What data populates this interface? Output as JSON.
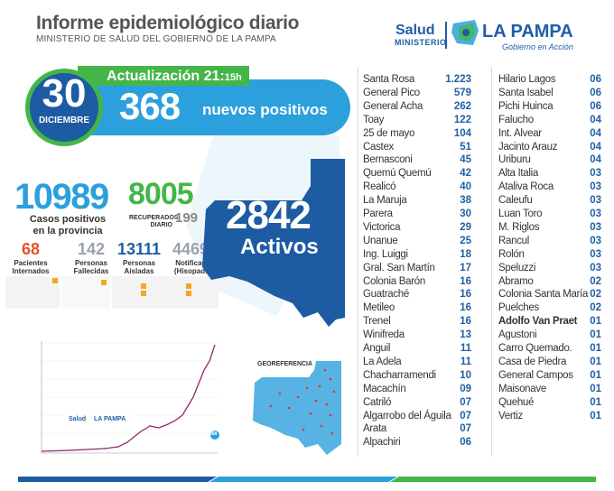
{
  "header": {
    "title": "Informe epidemiológico diario",
    "subtitle": "MINISTERIO DE SALUD DEL GOBIERNO DE LA PAMPA"
  },
  "brand": {
    "salud": "Salud",
    "ministerio": "MINISTERIO",
    "la_pampa": "LA PAMPA",
    "gobierno": "Gobierno en Acción"
  },
  "update": {
    "label": "Actualización 21:",
    "time": "15h"
  },
  "date": {
    "day": "30",
    "month": "DICIEMBRE"
  },
  "new_positive": {
    "value": "368",
    "label": "nuevos positivos"
  },
  "cases": {
    "value": "10989",
    "label_line1": "Casos positivos",
    "label_line2": "en la provincia"
  },
  "recovered": {
    "value": "8005",
    "label_line1": "RECUPERADOS",
    "label_line2": "DIARIO",
    "daily": "199"
  },
  "stats": [
    {
      "value": "68",
      "label_line1": "Pacientes",
      "label_line2": "Internados",
      "color": "#e8502b"
    },
    {
      "value": "142",
      "label_line1": "Personas",
      "label_line2": "Fallecidas",
      "color": "#9aa3ad"
    },
    {
      "value": "13111",
      "label_line1": "Personas",
      "label_line2": "Aisladas",
      "color": "#1f5fa6"
    },
    {
      "value": "44692",
      "label_line1": "Notificados",
      "label_line2": "(Hisopados)",
      "color": "#9aa3ad"
    }
  ],
  "active": {
    "value": "2842",
    "label": "Activos"
  },
  "georef": {
    "title": "GEOREFERENCIA"
  },
  "chart_footer": "368",
  "localities": [
    {
      "name": "Santa Rosa",
      "value": "1.223"
    },
    {
      "name": "General Pico",
      "value": "579"
    },
    {
      "name": "General Acha",
      "value": "262"
    },
    {
      "name": "Toay",
      "value": "122"
    },
    {
      "name": "25 de mayo",
      "value": "104"
    },
    {
      "name": "Castex",
      "value": "51"
    },
    {
      "name": "Bernasconi",
      "value": "45"
    },
    {
      "name": "Quemú Quemú",
      "value": "42"
    },
    {
      "name": "Realicó",
      "value": "40"
    },
    {
      "name": "La Maruja",
      "value": "38"
    },
    {
      "name": "Parera",
      "value": "30"
    },
    {
      "name": "Victorica",
      "value": "29"
    },
    {
      "name": "Unanue",
      "value": "25"
    },
    {
      "name": "Ing. Luiggi",
      "value": "18"
    },
    {
      "name": "Gral. San Martín",
      "value": "17"
    },
    {
      "name": "Colonia Barón",
      "value": "16"
    },
    {
      "name": "Guatraché",
      "value": "16"
    },
    {
      "name": "Metileo",
      "value": "16"
    },
    {
      "name": "Trenel",
      "value": "16"
    },
    {
      "name": "Winifreda",
      "value": "13"
    },
    {
      "name": "Anguil",
      "value": "11"
    },
    {
      "name": "La Adela",
      "value": "11"
    },
    {
      "name": "Chacharramendi",
      "value": "10"
    },
    {
      "name": "Macachín",
      "value": "09"
    },
    {
      "name": "Catriló",
      "value": "07"
    },
    {
      "name": "Algarrobo del Águila",
      "value": "07"
    },
    {
      "name": "Arata",
      "value": "07"
    },
    {
      "name": "Alpachiri",
      "value": "06"
    },
    {
      "name": "Hilario Lagos",
      "value": "06"
    },
    {
      "name": "Santa Isabel",
      "value": "06"
    },
    {
      "name": "Pichi Huinca",
      "value": "06"
    },
    {
      "name": "Falucho",
      "value": "04"
    },
    {
      "name": "Int. Alvear",
      "value": "04"
    },
    {
      "name": "Jacinto Arauz",
      "value": "04"
    },
    {
      "name": "Uriburu",
      "value": "04"
    },
    {
      "name": "Alta Italia",
      "value": "03"
    },
    {
      "name": "Ataliva Roca",
      "value": "03"
    },
    {
      "name": "Caleufu",
      "value": "03"
    },
    {
      "name": "Luan Toro",
      "value": "03"
    },
    {
      "name": "M. Riglos",
      "value": "03"
    },
    {
      "name": "Rancul",
      "value": "03"
    },
    {
      "name": "Rolón",
      "value": "03"
    },
    {
      "name": "Speluzzi",
      "value": "03"
    },
    {
      "name": "Abramo",
      "value": "02"
    },
    {
      "name": "Colonia Santa María",
      "value": "02"
    },
    {
      "name": "Puelches",
      "value": "02"
    },
    {
      "name": "Adolfo Van Praet",
      "value": "01"
    },
    {
      "name": "Agustoni",
      "value": "01"
    },
    {
      "name": "Carro Quemado.",
      "value": "01"
    },
    {
      "name": "Casa de Piedra",
      "value": "01"
    },
    {
      "name": "General Campos",
      "value": "01"
    },
    {
      "name": "Maisonave",
      "value": "01"
    },
    {
      "name": "Quehué",
      "value": "01"
    },
    {
      "name": "Vertiz",
      "value": "01"
    }
  ],
  "colors": {
    "blue": "#2ca0dc",
    "dark_blue": "#1d5ba3",
    "green": "#44b648",
    "magenta": "#8e2a6b"
  }
}
